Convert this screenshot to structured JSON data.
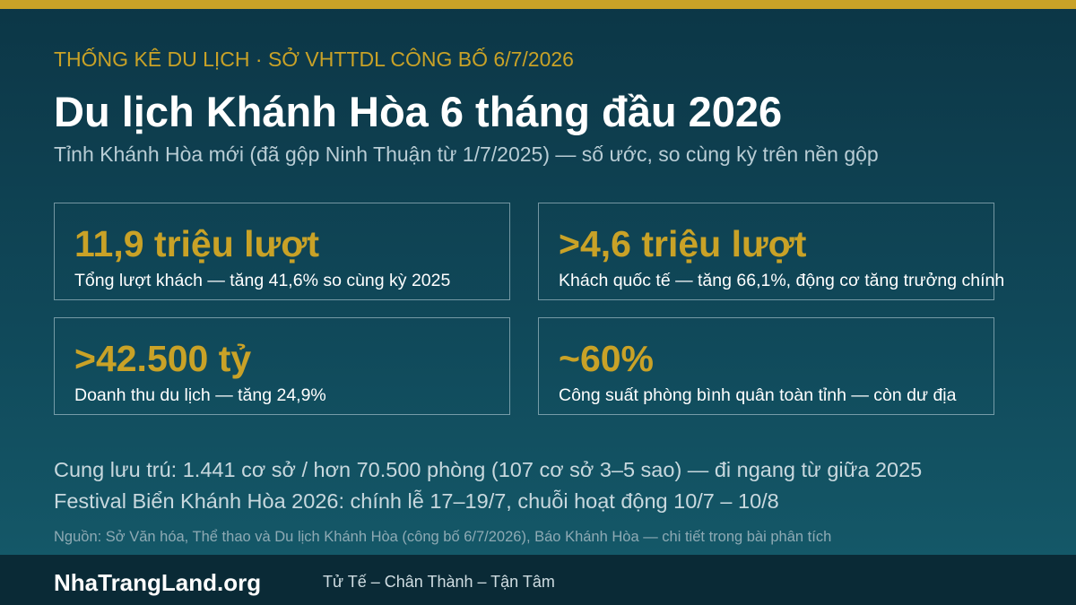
{
  "header": {
    "kicker": "THỐNG KÊ DU LỊCH · SỞ VHTTDL CÔNG BỐ 6/7/2026",
    "title": "Du lịch Khánh Hòa 6 tháng đầu 2026",
    "subtitle": "Tỉnh Khánh Hòa mới (đã gộp Ninh Thuận từ 1/7/2025) — số ước, so cùng kỳ trên nền gộp"
  },
  "stats": [
    {
      "value": "11,9 triệu lượt",
      "label": "Tổng lượt khách — tăng 41,6% so cùng kỳ 2025"
    },
    {
      "value": ">4,6 triệu lượt",
      "label": "Khách quốc tế — tăng 66,1%, động cơ tăng trưởng chính"
    },
    {
      "value": ">42.500 tỷ",
      "label": "Doanh thu du lịch — tăng 24,9%"
    },
    {
      "value": "~60%",
      "label": "Công suất phòng bình quân toàn tỉnh — còn dư địa"
    }
  ],
  "notes": [
    "Cung lưu trú: 1.441 cơ sở / hơn 70.500 phòng (107 cơ sở 3–5 sao) — đi ngang từ giữa 2025",
    "Festival Biển Khánh Hòa 2026: chính lễ 17–19/7, chuỗi hoạt động 10/7 – 10/8"
  ],
  "source": "Nguồn: Sở Văn hóa, Thể thao và Du lịch Khánh Hòa (công bố 6/7/2026), Báo Khánh Hòa — chi tiết trong bài phân tích",
  "footer": {
    "brand": "NhaTrangLand.org",
    "slogan": "Tử Tế – Chân Thành – Tận Tâm"
  }
}
